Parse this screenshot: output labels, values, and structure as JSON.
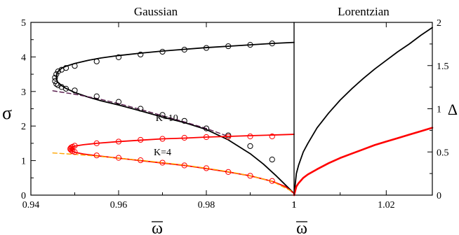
{
  "chart_data": [
    {
      "type": "line",
      "title": "Gaussian",
      "xlabel": "ω",
      "ylabel": "σ",
      "xlim": [
        0.94,
        1.0
      ],
      "ylim": [
        0,
        5
      ],
      "xticks": [
        0.94,
        0.96,
        0.98,
        1
      ],
      "xtick_labels": [
        "0.94",
        "0.96",
        "0.98",
        "1"
      ],
      "yticks": [
        0,
        1,
        2,
        3,
        4,
        5
      ],
      "ytick_labels": [
        "0",
        "1",
        "2",
        "3",
        "4",
        "5"
      ],
      "grid": false,
      "annotations": [
        {
          "text": "K=10",
          "x": 0.971,
          "y": 2.15
        },
        {
          "text": "K=4",
          "x": 0.97,
          "y": 1.15
        }
      ],
      "series": [
        {
          "color": "#000000",
          "style": "solid",
          "x": [
            0.9458,
            0.946,
            0.9465,
            0.947,
            0.948,
            0.95,
            0.953,
            0.956,
            0.96,
            0.965,
            0.97,
            0.975,
            0.98,
            0.985,
            0.99,
            0.995,
            1.0
          ],
          "y": [
            3.4,
            3.55,
            3.62,
            3.67,
            3.73,
            3.81,
            3.9,
            3.97,
            4.04,
            4.11,
            4.17,
            4.22,
            4.27,
            4.31,
            4.35,
            4.39,
            4.42
          ]
        },
        {
          "color": "#000000",
          "style": "solid",
          "x": [
            0.9458,
            0.946,
            0.9465,
            0.947,
            0.948,
            0.95,
            0.953,
            0.956,
            0.96,
            0.965,
            0.97,
            0.975,
            0.98,
            0.985,
            0.99,
            0.993,
            0.996,
            0.998,
            1.0
          ],
          "y": [
            3.4,
            3.29,
            3.22,
            3.17,
            3.09,
            2.97,
            2.84,
            2.73,
            2.61,
            2.44,
            2.26,
            2.1,
            1.9,
            1.6,
            1.2,
            0.9,
            0.55,
            0.3,
            0.05
          ]
        },
        {
          "color": "#551a4a",
          "style": "dashed",
          "x": [
            0.945,
            0.95,
            0.955,
            0.96,
            0.965,
            0.97,
            0.975,
            0.98,
            0.985
          ],
          "y": [
            3.02,
            2.92,
            2.8,
            2.65,
            2.48,
            2.3,
            2.12,
            1.93,
            1.7
          ]
        },
        {
          "color": "#000000",
          "style": "markers",
          "x": [
            0.9455,
            0.9458,
            0.9462,
            0.947,
            0.948,
            0.95,
            0.955,
            0.96,
            0.965,
            0.97,
            0.975,
            0.98,
            0.985,
            0.99,
            0.995
          ],
          "y": [
            3.4,
            3.5,
            3.58,
            3.63,
            3.68,
            3.74,
            3.87,
            3.99,
            4.07,
            4.15,
            4.21,
            4.26,
            4.31,
            4.35,
            4.39
          ]
        },
        {
          "color": "#000000",
          "style": "markers",
          "x": [
            0.9455,
            0.9458,
            0.9462,
            0.947,
            0.948,
            0.95,
            0.955,
            0.96,
            0.965,
            0.97,
            0.975,
            0.98,
            0.985,
            0.99,
            0.995
          ],
          "y": [
            3.3,
            3.22,
            3.18,
            3.13,
            3.08,
            3.03,
            2.86,
            2.7,
            2.5,
            2.32,
            2.15,
            1.93,
            1.73,
            1.42,
            1.03
          ]
        },
        {
          "color": "#ff0000",
          "style": "solid",
          "x": [
            0.949,
            0.9495,
            0.95,
            0.952,
            0.955,
            0.96,
            0.965,
            0.97,
            0.975,
            0.98,
            0.985,
            0.99,
            0.995,
            1.0
          ],
          "y": [
            1.33,
            1.39,
            1.42,
            1.46,
            1.5,
            1.55,
            1.59,
            1.63,
            1.65,
            1.68,
            1.7,
            1.72,
            1.74,
            1.76
          ]
        },
        {
          "color": "#ff0000",
          "style": "solid",
          "x": [
            0.949,
            0.9495,
            0.95,
            0.952,
            0.955,
            0.96,
            0.965,
            0.97,
            0.975,
            0.98,
            0.985,
            0.99,
            0.995,
            0.998,
            1.0
          ],
          "y": [
            1.33,
            1.27,
            1.24,
            1.19,
            1.14,
            1.07,
            1.0,
            0.93,
            0.86,
            0.77,
            0.67,
            0.56,
            0.4,
            0.25,
            0.05
          ]
        },
        {
          "color": "#ffa500",
          "style": "dashed",
          "x": [
            0.945,
            0.95,
            0.955,
            0.96,
            0.965,
            0.97,
            0.975,
            0.98,
            0.985,
            0.99,
            0.995,
            1.0
          ],
          "y": [
            1.22,
            1.18,
            1.13,
            1.07,
            1.01,
            0.94,
            0.87,
            0.78,
            0.68,
            0.56,
            0.4,
            0.08
          ]
        },
        {
          "color": "#ff0000",
          "style": "markers",
          "x": [
            0.949,
            0.9492,
            0.9495,
            0.95,
            0.955,
            0.96,
            0.965,
            0.97,
            0.975,
            0.98,
            0.985,
            0.99,
            0.995
          ],
          "y": [
            1.35,
            1.38,
            1.4,
            1.43,
            1.5,
            1.55,
            1.6,
            1.63,
            1.66,
            1.68,
            1.69,
            1.7,
            1.7
          ]
        },
        {
          "color": "#ff0000",
          "style": "markers",
          "x": [
            0.949,
            0.9492,
            0.9495,
            0.95,
            0.955,
            0.96,
            0.965,
            0.97,
            0.975,
            0.98,
            0.985,
            0.99,
            0.995
          ],
          "y": [
            1.33,
            1.3,
            1.27,
            1.25,
            1.15,
            1.08,
            1.01,
            0.94,
            0.86,
            0.78,
            0.67,
            0.56,
            0.41
          ]
        }
      ]
    },
    {
      "type": "line",
      "title": "Lorentzian",
      "xlabel": "ω",
      "ylabel": "Δ",
      "xlim": [
        1.0,
        1.03
      ],
      "ylim": [
        0,
        2
      ],
      "xticks": [
        1,
        1.02
      ],
      "xtick_labels": [
        "1",
        "1.02"
      ],
      "yticks": [
        0,
        0.5,
        1,
        1.5,
        2
      ],
      "ytick_labels": [
        "0",
        "0.5",
        "1",
        "1.5",
        "2"
      ],
      "yaxis_side": "right",
      "grid": false,
      "series": [
        {
          "color": "#000000",
          "style": "solid",
          "x": [
            1.0,
            1.0005,
            1.001,
            1.002,
            1.003,
            1.005,
            1.0075,
            1.01,
            1.0125,
            1.015,
            1.0175,
            1.02,
            1.0225,
            1.025,
            1.0275,
            1.03
          ],
          "y": [
            0.0,
            0.25,
            0.35,
            0.5,
            0.6,
            0.78,
            0.95,
            1.1,
            1.23,
            1.35,
            1.46,
            1.56,
            1.66,
            1.75,
            1.85,
            1.94
          ]
        },
        {
          "color": "#ff0000",
          "style": "solid",
          "x": [
            1.0,
            1.0005,
            1.001,
            1.002,
            1.003,
            1.005,
            1.0075,
            1.01,
            1.0125,
            1.015,
            1.0175,
            1.02,
            1.0225,
            1.025,
            1.0275,
            1.03
          ],
          "y": [
            0.0,
            0.1,
            0.14,
            0.2,
            0.24,
            0.3,
            0.37,
            0.43,
            0.48,
            0.53,
            0.58,
            0.62,
            0.66,
            0.7,
            0.74,
            0.78
          ]
        }
      ]
    }
  ]
}
